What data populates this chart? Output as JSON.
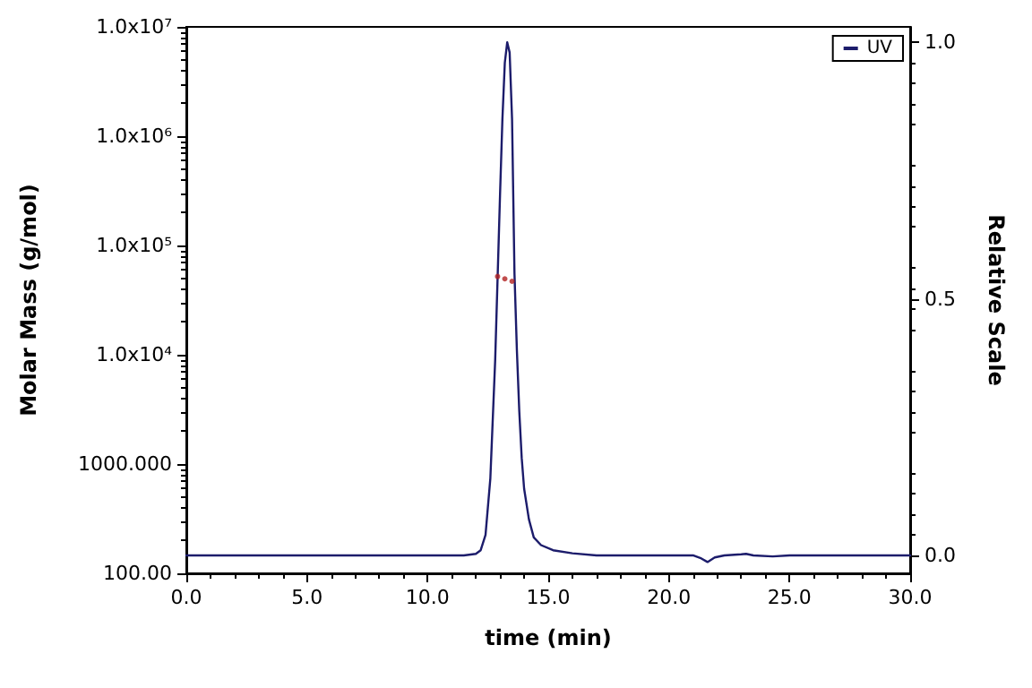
{
  "chart_data": {
    "type": "line",
    "xlabel": "time (min)",
    "ylabel": "Molar Mass (g/mol)",
    "y2label": "Relative Scale",
    "xlim": [
      0,
      30
    ],
    "xticks": [
      {
        "value": 0,
        "label": "0.0"
      },
      {
        "value": 5,
        "label": "5.0"
      },
      {
        "value": 10,
        "label": "10.0"
      },
      {
        "value": 15,
        "label": "15.0"
      },
      {
        "value": 20,
        "label": "20.0"
      },
      {
        "value": 25,
        "label": "25.0"
      },
      {
        "value": 30,
        "label": "30.0"
      }
    ],
    "ylim": [
      100,
      10000000
    ],
    "yticks": [
      {
        "value": 100,
        "label": "100.00"
      },
      {
        "value": 1000,
        "label": "1000.000"
      },
      {
        "value": 10000,
        "label": "1.0x10⁴"
      },
      {
        "value": 100000,
        "label": "1.0x10⁵"
      },
      {
        "value": 1000000,
        "label": "1.0x10⁶"
      },
      {
        "value": 10000000,
        "label": "1.0x10⁷"
      }
    ],
    "y2lim": [
      -0.035,
      1.03
    ],
    "y2ticks": [
      {
        "value": 0,
        "label": "0.0"
      },
      {
        "value": 0.5,
        "label": "0.5"
      },
      {
        "value": 1,
        "label": "1.0"
      }
    ],
    "log": "y",
    "grid": false,
    "legend": "top right",
    "series": [
      {
        "name": "UV",
        "axis": "y2",
        "color": "#1c1c6b",
        "marker": "none",
        "line_style": "solid",
        "x": [
          0,
          11.5,
          12.0,
          12.2,
          12.4,
          12.6,
          12.8,
          13.0,
          13.1,
          13.2,
          13.3,
          13.4,
          13.5,
          13.6,
          13.7,
          13.8,
          13.9,
          14.0,
          14.2,
          14.4,
          14.7,
          15.2,
          16.0,
          17.0,
          21.0,
          21.3,
          21.6,
          21.9,
          22.3,
          23.0,
          23.2,
          23.5,
          24.3,
          25.0,
          30.0
        ],
        "values": [
          0,
          0,
          0.003,
          0.01,
          0.04,
          0.15,
          0.38,
          0.7,
          0.85,
          0.96,
          1.0,
          0.98,
          0.85,
          0.55,
          0.4,
          0.28,
          0.19,
          0.13,
          0.07,
          0.035,
          0.02,
          0.01,
          0.004,
          0,
          0,
          -0.005,
          -0.013,
          -0.004,
          0,
          0.002,
          0.003,
          0,
          -0.002,
          0,
          0
        ]
      },
      {
        "type": "scatter",
        "color": "#b22222",
        "marker": "circle",
        "x": [
          12.9,
          13.2,
          13.5
        ],
        "values": [
          52000,
          49500,
          47000
        ]
      }
    ]
  }
}
